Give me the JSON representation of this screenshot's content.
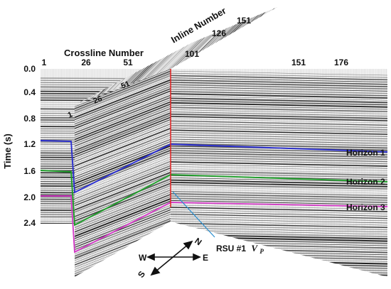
{
  "crossline_title": "Crossline Number",
  "crossline_ticks": [
    "1",
    "26",
    "51",
    "151",
    "176"
  ],
  "inline_title": "Inline Number",
  "inline_ticks": [
    "101",
    "126",
    "151"
  ],
  "inline_ticks_on_face": [
    "26",
    "51"
  ],
  "near_corner_tick": "1",
  "time_axis_label": "Time (s)",
  "time_ticks": [
    "0.0",
    "0.4",
    "0.8",
    "1.2",
    "1.6",
    "2.0",
    "2.4"
  ],
  "horizons": [
    {
      "name": "Horizon 1",
      "color": "#2b2fd0"
    },
    {
      "name": "Horizon 2",
      "color": "#1f9e2a"
    },
    {
      "name": "Horizon 3",
      "color": "#d33cc6"
    }
  ],
  "well": {
    "label": "RSU #1",
    "symbol": "V",
    "subscript": "P",
    "color": "#e02020",
    "pointer_color": "#2a8fd0"
  },
  "compass": {
    "north": "N",
    "south": "S",
    "east": "E",
    "west": "W"
  }
}
